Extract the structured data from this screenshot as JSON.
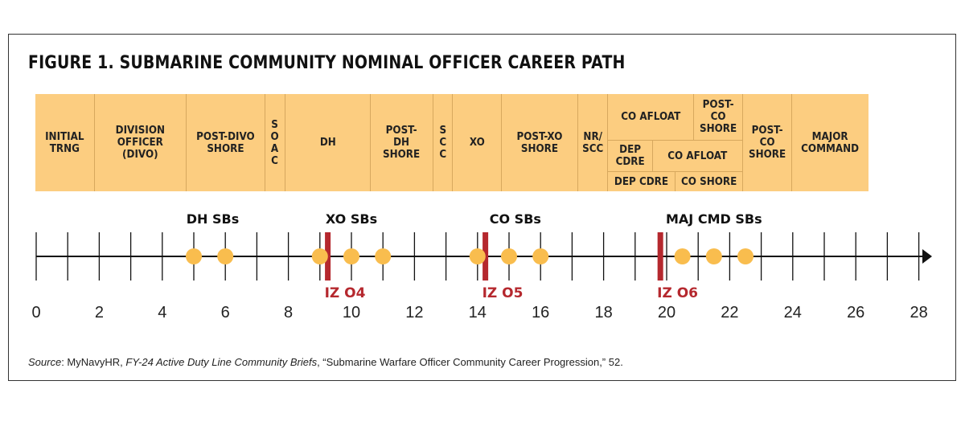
{
  "title": "FIGURE 1. SUBMARINE COMMUNITY NOMINAL OFFICER CAREER PATH",
  "band": {
    "color": "#FCCD80",
    "phases": [
      {
        "id": "initial",
        "label": "INITIAL\nTRNG"
      },
      {
        "id": "divo",
        "label": "DIVISION\nOFFICER\n(DIVO)"
      },
      {
        "id": "post-divo",
        "label": "POST-DIVO\nSHORE"
      },
      {
        "id": "soac",
        "label": "S\nO\nA\nC"
      },
      {
        "id": "dh",
        "label": "DH"
      },
      {
        "id": "post-dh",
        "label": "POST-\nDH\nSHORE"
      },
      {
        "id": "scc",
        "label": "S\nC\nC"
      },
      {
        "id": "xo",
        "label": "XO"
      },
      {
        "id": "post-xo",
        "label": "POST-XO\nSHORE"
      },
      {
        "id": "nr-scc",
        "label": "NR/\nSCC"
      },
      {
        "id": "co-afloat-1",
        "label": "CO AFLOAT"
      },
      {
        "id": "post-co-shore-1",
        "label": "POST-\nCO\nSHORE"
      },
      {
        "id": "dep-cdre-1",
        "label": "DEP\nCDRE"
      },
      {
        "id": "co-afloat-2",
        "label": "CO AFLOAT"
      },
      {
        "id": "dep-cdre-2",
        "label": "DEP CDRE"
      },
      {
        "id": "co-shore",
        "label": "CO SHORE"
      },
      {
        "id": "post-co-shore-2",
        "label": "POST-\nCO\nSHORE"
      },
      {
        "id": "major-command",
        "label": "MAJOR\nCOMMAND"
      }
    ]
  },
  "timeline": {
    "axis_min": 0,
    "axis_max": 28,
    "tick_step": 1,
    "tick_labels": [
      "0",
      "2",
      "4",
      "6",
      "8",
      "10",
      "12",
      "14",
      "16",
      "18",
      "20",
      "22",
      "24",
      "26",
      "28"
    ],
    "board_points": [
      5,
      6,
      9,
      10,
      11,
      14,
      15,
      16,
      20.5,
      21.5,
      22.5
    ],
    "board_color": "#F9BD4E",
    "board_groups": [
      {
        "label": "DH SBs",
        "at": 5.6
      },
      {
        "label": "XO SBs",
        "at": 10
      },
      {
        "label": "CO SBs",
        "at": 15.2
      },
      {
        "label": "MAJ CMD SBs",
        "at": 21.5
      }
    ],
    "in_zone": [
      {
        "label": "IZ O4",
        "at": 9.25
      },
      {
        "label": "IZ O5",
        "at": 14.25
      },
      {
        "label": "IZ O6",
        "at": 19.8
      }
    ],
    "in_zone_color": "#B5282E"
  },
  "source": {
    "prefix": "Source",
    "t1": ": MyNavyHR, ",
    "italic": "FY-24 Active Duty Line Community Briefs",
    "t2": ", “Submarine Warfare Officer Community Career Progression,” 52."
  }
}
